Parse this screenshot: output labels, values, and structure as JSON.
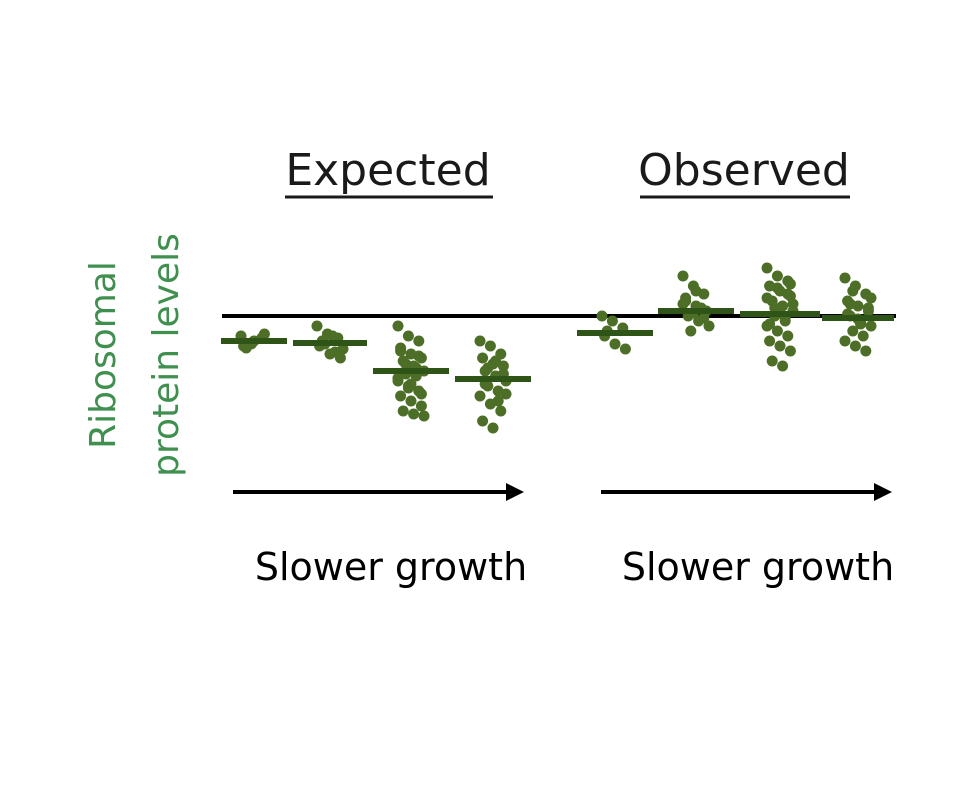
{
  "y_axis": {
    "label_line1": "Ribosomal",
    "label_line2": "protein levels",
    "color": "#3f8f4f"
  },
  "reference_level": 0,
  "colors": {
    "dot": "#4c6e26",
    "median": "#2e5418",
    "reference_line": "#000000",
    "arrow": "#000000"
  },
  "panels": [
    {
      "title": "Expected",
      "arrow_label": "Slower growth",
      "groups": [
        {
          "median": -0.25,
          "points": [
            -0.2,
            -0.28,
            -0.22,
            -0.3,
            -0.25,
            -0.18,
            -0.32
          ]
        },
        {
          "median": -0.27,
          "points": [
            -0.1,
            -0.18,
            -0.22,
            -0.3,
            -0.38,
            -0.42,
            -0.25,
            -0.2,
            -0.33,
            -0.28,
            -0.36
          ]
        },
        {
          "median": -0.55,
          "points": [
            -0.1,
            -0.2,
            -0.25,
            -0.32,
            -0.38,
            -0.42,
            -0.45,
            -0.5,
            -0.55,
            -0.58,
            -0.6,
            -0.65,
            -0.7,
            -0.75,
            -0.8,
            -0.85,
            -0.9,
            -0.95,
            -0.98,
            -1.0,
            -0.48,
            -0.52,
            -0.62,
            -0.72,
            -0.4,
            -0.35,
            -0.68,
            -0.78
          ]
        },
        {
          "median": -0.63,
          "points": [
            -0.25,
            -0.3,
            -0.38,
            -0.42,
            -0.48,
            -0.5,
            -0.55,
            -0.6,
            -0.65,
            -0.7,
            -0.75,
            -0.8,
            -0.88,
            -0.95,
            -1.05,
            -1.12,
            -0.58,
            -0.68,
            -0.45,
            -0.78,
            -0.52,
            -0.85
          ]
        }
      ]
    },
    {
      "title": "Observed",
      "arrow_label": "Slower growth",
      "groups": [
        {
          "median": -0.17,
          "points": [
            0.0,
            -0.05,
            -0.12,
            -0.2,
            -0.28,
            -0.33,
            -0.15
          ]
        },
        {
          "median": 0.05,
          "points": [
            0.4,
            0.3,
            0.22,
            0.15,
            0.1,
            0.05,
            0.0,
            -0.05,
            -0.1,
            -0.15,
            0.08,
            0.12,
            0.03,
            -0.02,
            0.18,
            0.25
          ]
        },
        {
          "median": 0.02,
          "points": [
            0.48,
            0.4,
            0.35,
            0.3,
            0.25,
            0.2,
            0.15,
            0.1,
            0.05,
            0.0,
            -0.05,
            -0.1,
            -0.15,
            -0.2,
            -0.25,
            -0.3,
            -0.35,
            -0.45,
            -0.5,
            0.12,
            0.08,
            -0.02,
            0.18,
            0.28,
            0.22,
            -0.08,
            0.03,
            0.32
          ]
        },
        {
          "median": -0.02,
          "points": [
            0.38,
            0.3,
            0.22,
            0.15,
            0.1,
            0.05,
            0.0,
            -0.05,
            -0.1,
            -0.15,
            -0.2,
            -0.25,
            -0.3,
            -0.35,
            0.02,
            -0.03,
            0.08,
            0.12,
            -0.08,
            0.18,
            0.25
          ]
        }
      ]
    }
  ]
}
